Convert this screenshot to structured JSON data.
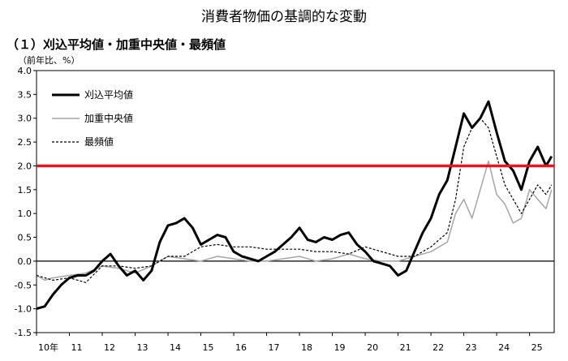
{
  "title": "消費者物価の基調的な変動",
  "chart_data": {
    "type": "line",
    "subtitle": "（１）刈込平均値・加重中央値・最頻値",
    "ylabel": "（前年比、%）",
    "ylim": [
      -1.5,
      4.0
    ],
    "yticks": [
      "4.0",
      "3.5",
      "3.0",
      "2.5",
      "2.0",
      "1.5",
      "1.0",
      "0.5",
      "0.0",
      "-0.5",
      "-1.0",
      "-1.5"
    ],
    "xlim": [
      2010,
      2025.75
    ],
    "xticks": [
      {
        "v": 2010,
        "label": "10年"
      },
      {
        "v": 2011,
        "label": "11"
      },
      {
        "v": 2012,
        "label": "12"
      },
      {
        "v": 2013,
        "label": "13"
      },
      {
        "v": 2014,
        "label": "14"
      },
      {
        "v": 2015,
        "label": "15"
      },
      {
        "v": 2016,
        "label": "16"
      },
      {
        "v": 2017,
        "label": "17"
      },
      {
        "v": 2018,
        "label": "18"
      },
      {
        "v": 2019,
        "label": "19"
      },
      {
        "v": 2020,
        "label": "20"
      },
      {
        "v": 2021,
        "label": "21"
      },
      {
        "v": 2022,
        "label": "22"
      },
      {
        "v": 2023,
        "label": "23"
      },
      {
        "v": 2024,
        "label": "24"
      },
      {
        "v": 2025,
        "label": "25"
      }
    ],
    "reference_line": {
      "y": 2.0,
      "color": "#e8141e"
    },
    "legend_position": "top-left",
    "series": [
      {
        "name": "刈込平均値",
        "color": "#000000",
        "style": "solid-bold",
        "x": [
          2010,
          2010.25,
          2010.5,
          2010.75,
          2011,
          2011.25,
          2011.5,
          2011.75,
          2012,
          2012.25,
          2012.5,
          2012.75,
          2013,
          2013.25,
          2013.5,
          2013.75,
          2014,
          2014.25,
          2014.5,
          2014.75,
          2015,
          2015.25,
          2015.5,
          2015.75,
          2016,
          2016.25,
          2016.5,
          2016.75,
          2017,
          2017.25,
          2017.5,
          2017.75,
          2018,
          2018.25,
          2018.5,
          2018.75,
          2019,
          2019.25,
          2019.5,
          2019.75,
          2020,
          2020.25,
          2020.5,
          2020.75,
          2021,
          2021.25,
          2021.5,
          2021.75,
          2022,
          2022.25,
          2022.5,
          2022.75,
          2023,
          2023.25,
          2023.5,
          2023.75,
          2024,
          2024.25,
          2024.5,
          2024.75,
          2025,
          2025.25,
          2025.5,
          2025.67
        ],
        "y": [
          -1.0,
          -0.95,
          -0.7,
          -0.5,
          -0.35,
          -0.3,
          -0.3,
          -0.2,
          0.0,
          0.15,
          -0.1,
          -0.3,
          -0.2,
          -0.4,
          -0.2,
          0.4,
          0.75,
          0.8,
          0.9,
          0.7,
          0.35,
          0.45,
          0.55,
          0.5,
          0.2,
          0.1,
          0.05,
          0.0,
          0.1,
          0.2,
          0.35,
          0.5,
          0.7,
          0.45,
          0.4,
          0.5,
          0.45,
          0.55,
          0.6,
          0.35,
          0.2,
          0.0,
          -0.05,
          -0.1,
          -0.3,
          -0.2,
          0.2,
          0.6,
          0.9,
          1.4,
          1.7,
          2.4,
          3.1,
          2.8,
          3.0,
          3.35,
          2.7,
          2.1,
          1.9,
          1.5,
          2.1,
          2.4,
          2.0,
          2.2
        ]
      },
      {
        "name": "加重中央値",
        "color": "#a6a6a6",
        "style": "solid",
        "x": [
          2010,
          2010.25,
          2010.5,
          2011,
          2011.5,
          2012,
          2012.5,
          2013,
          2013.5,
          2014,
          2014.5,
          2015,
          2015.5,
          2016,
          2016.5,
          2017,
          2017.5,
          2018,
          2018.5,
          2019,
          2019.5,
          2020,
          2020.5,
          2021,
          2021.5,
          2022,
          2022.5,
          2022.75,
          2023,
          2023.25,
          2023.5,
          2023.75,
          2024,
          2024.25,
          2024.5,
          2024.75,
          2025,
          2025.25,
          2025.5,
          2025.67
        ],
        "y": [
          -0.3,
          -0.4,
          -0.35,
          -0.3,
          -0.25,
          -0.1,
          -0.15,
          -0.25,
          -0.1,
          0.1,
          0.05,
          0.0,
          0.1,
          0.05,
          0.0,
          0.0,
          0.05,
          0.1,
          0.0,
          0.05,
          0.15,
          0.05,
          0.0,
          0.0,
          0.1,
          0.2,
          0.4,
          1.0,
          1.3,
          0.9,
          1.5,
          2.1,
          1.4,
          1.2,
          0.8,
          0.9,
          1.5,
          1.3,
          1.1,
          1.5
        ]
      },
      {
        "name": "最頻値",
        "color": "#000000",
        "style": "dashed",
        "x": [
          2010,
          2010.5,
          2011,
          2011.5,
          2012,
          2012.5,
          2013,
          2013.5,
          2014,
          2014.5,
          2015,
          2015.5,
          2016,
          2016.5,
          2017,
          2017.5,
          2018,
          2018.5,
          2019,
          2019.5,
          2020,
          2020.5,
          2021,
          2021.5,
          2022,
          2022.5,
          2022.75,
          2023,
          2023.25,
          2023.5,
          2023.75,
          2024,
          2024.25,
          2024.5,
          2024.75,
          2025,
          2025.25,
          2025.5,
          2025.67
        ],
        "y": [
          -0.3,
          -0.4,
          -0.35,
          -0.45,
          -0.1,
          -0.1,
          -0.15,
          -0.1,
          0.1,
          0.1,
          0.3,
          0.35,
          0.3,
          0.3,
          0.25,
          0.25,
          0.25,
          0.2,
          0.2,
          0.15,
          0.3,
          0.2,
          0.1,
          0.1,
          0.3,
          0.6,
          1.3,
          2.4,
          2.8,
          3.0,
          2.8,
          2.2,
          1.6,
          1.3,
          1.0,
          1.3,
          1.6,
          1.4,
          1.6
        ]
      }
    ]
  }
}
